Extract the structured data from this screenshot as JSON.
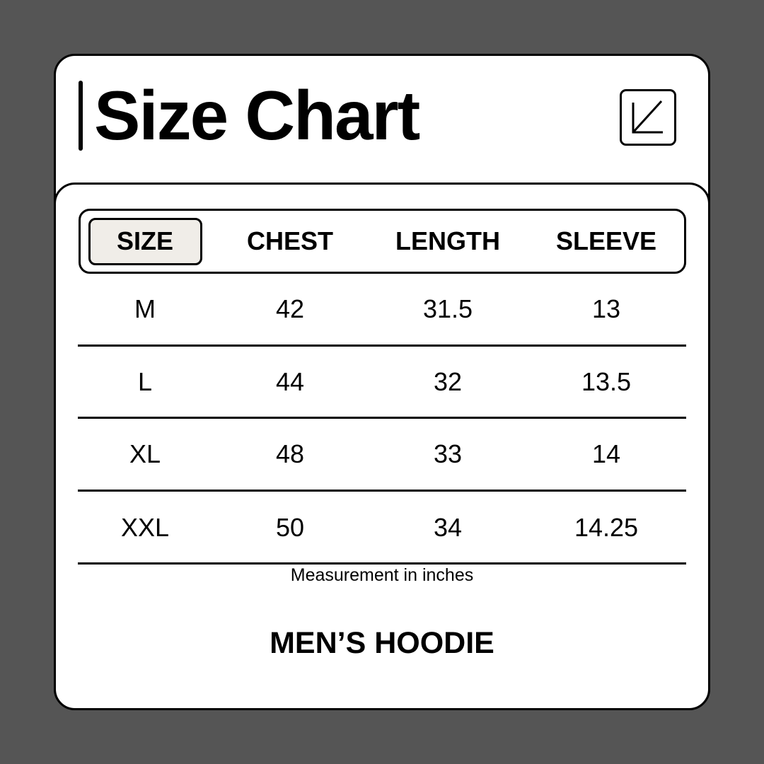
{
  "title": "Size Chart",
  "icon": "arrow-down-left-icon",
  "headers": [
    "SIZE",
    "CHEST",
    "LENGTH",
    "SLEEVE"
  ],
  "rows": [
    [
      "M",
      "42",
      "31.5",
      "13"
    ],
    [
      "L",
      "44",
      "32",
      "13.5"
    ],
    [
      "XL",
      "48",
      "33",
      "14"
    ],
    [
      "XXL",
      "50",
      "34",
      "14.25"
    ]
  ],
  "note": "Measurement in inches",
  "product": "MEN’S HOODIE",
  "colors": {
    "background": "#555555",
    "card": "#ffffff",
    "highlight": "#f0ede8",
    "ink": "#000000"
  }
}
